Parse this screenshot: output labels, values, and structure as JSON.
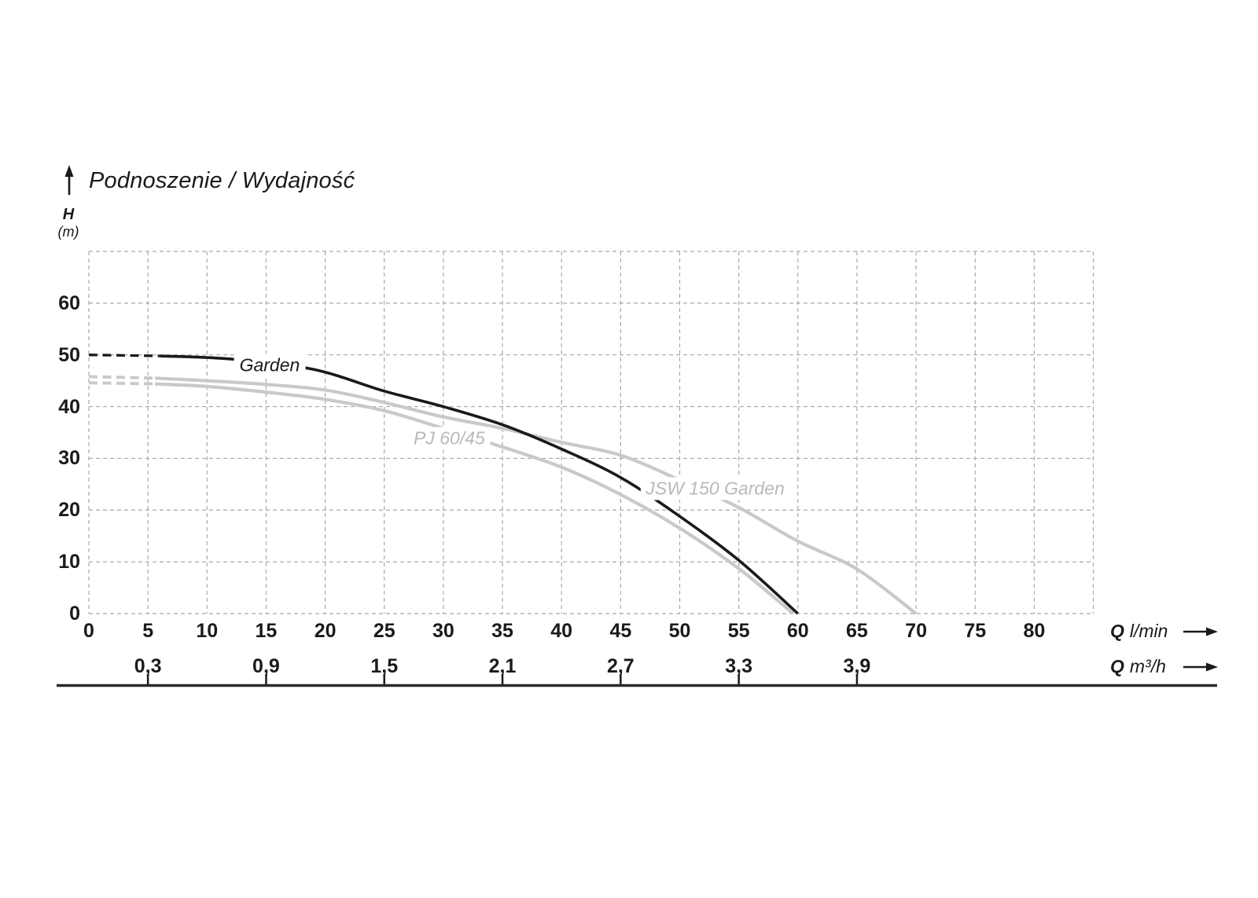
{
  "title": "Podnoszenie / Wydajność",
  "y_axis": {
    "symbol": "H",
    "unit": "(m)",
    "ticks": [
      60,
      50,
      40,
      30,
      20,
      10,
      0
    ]
  },
  "x_axis_lmin": {
    "prefix": "Q",
    "unit": "l/min",
    "ticks": [
      0,
      5,
      10,
      15,
      20,
      25,
      30,
      35,
      40,
      45,
      50,
      55,
      60,
      65,
      70,
      75,
      80
    ]
  },
  "x_axis_m3h": {
    "prefix": "Q",
    "unit": "m³/h",
    "ticks": [
      {
        "label": "0,3",
        "q": 5
      },
      {
        "label": "0,9",
        "q": 15
      },
      {
        "label": "1,5",
        "q": 25
      },
      {
        "label": "2,1",
        "q": 35
      },
      {
        "label": "2,7",
        "q": 45
      },
      {
        "label": "3,3",
        "q": 55
      },
      {
        "label": "3,9",
        "q": 65
      }
    ]
  },
  "colors": {
    "text": "#1a1a1a",
    "curve_black": "#1a1a1a",
    "curve_gray": "#c9c9c9",
    "label_gray": "#b9b9b9",
    "grid": "#a8a8a8"
  },
  "chart_data": {
    "type": "line",
    "title": "Podnoszenie / Wydajność",
    "xlabel": "Q l/min | Q m³/h",
    "ylabel": "H (m)",
    "xlim": [
      0,
      85
    ],
    "ylim": [
      0,
      70
    ],
    "grid": true,
    "x_grid_step": 5,
    "y_grid_step": 10,
    "series": [
      {
        "name": "Garden",
        "color_key": "curve_black",
        "label": {
          "text": "Garden",
          "q": 15.3,
          "h": 48.0,
          "color_key": "text"
        },
        "dashed_points": [
          [
            0,
            50
          ],
          [
            6,
            49.8
          ]
        ],
        "points": [
          [
            6,
            49.8
          ],
          [
            12,
            49.2
          ],
          [
            19,
            47.2
          ],
          [
            25,
            43
          ],
          [
            30,
            40
          ],
          [
            35,
            36.5
          ],
          [
            40,
            31.8
          ],
          [
            45,
            26.3
          ],
          [
            50,
            18.8
          ],
          [
            55,
            10.3
          ],
          [
            60,
            0
          ]
        ]
      },
      {
        "name": "PJ 60/45",
        "color_key": "curve_gray",
        "label": {
          "text": "PJ 60/45",
          "q": 30.5,
          "h": 33.8,
          "color_key": "label_gray"
        },
        "dashed_points": [
          [
            0,
            44.6
          ],
          [
            5.6,
            44.4
          ]
        ],
        "points": [
          [
            5.6,
            44.4
          ],
          [
            10,
            43.9
          ],
          [
            15,
            42.8
          ],
          [
            20,
            41.4
          ],
          [
            25,
            39.2
          ],
          [
            30,
            35.8
          ],
          [
            35,
            32.2
          ],
          [
            40,
            28.3
          ],
          [
            45,
            23
          ],
          [
            50,
            16.5
          ],
          [
            55,
            8.7
          ],
          [
            59.6,
            0
          ]
        ]
      },
      {
        "name": "JSW 150 Garden",
        "color_key": "curve_gray",
        "label": {
          "text": "JSW 150 Garden",
          "q": 53,
          "h": 24.2,
          "color_key": "label_gray"
        },
        "dashed_points": [
          [
            0,
            45.8
          ],
          [
            5.6,
            45.5
          ]
        ],
        "points": [
          [
            5.6,
            45.5
          ],
          [
            10,
            45
          ],
          [
            15,
            44.3
          ],
          [
            20,
            43.2
          ],
          [
            25,
            40.8
          ],
          [
            30,
            38
          ],
          [
            35,
            35.8
          ],
          [
            40,
            33.1
          ],
          [
            45,
            30.6
          ],
          [
            50,
            25.8
          ],
          [
            55,
            20.5
          ],
          [
            60,
            14
          ],
          [
            65,
            8.6
          ],
          [
            70,
            0
          ]
        ]
      }
    ]
  }
}
